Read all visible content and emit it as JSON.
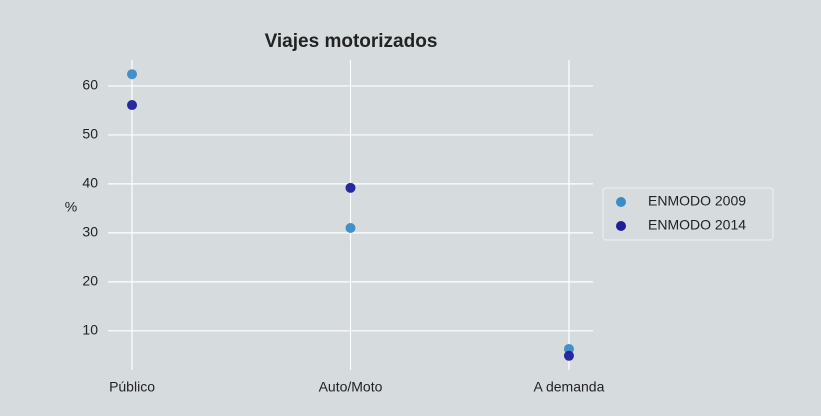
{
  "chart_data": {
    "type": "scatter",
    "title": "Viajes motorizados",
    "ylabel": "%",
    "categories": [
      "Público",
      "Auto/Moto",
      "A demanda"
    ],
    "series": [
      {
        "name": "ENMODO 2009",
        "color": "#3a8cc8",
        "values": [
          62.4,
          31.0,
          6.3
        ]
      },
      {
        "name": "ENMODO 2014",
        "color": "#1f1f9a",
        "values": [
          56.1,
          39.2,
          4.9
        ]
      }
    ],
    "ylim": [
      2,
      65.3
    ],
    "yticks": [
      10,
      20,
      30,
      40,
      50,
      60
    ],
    "grid": true,
    "legend": "right"
  }
}
